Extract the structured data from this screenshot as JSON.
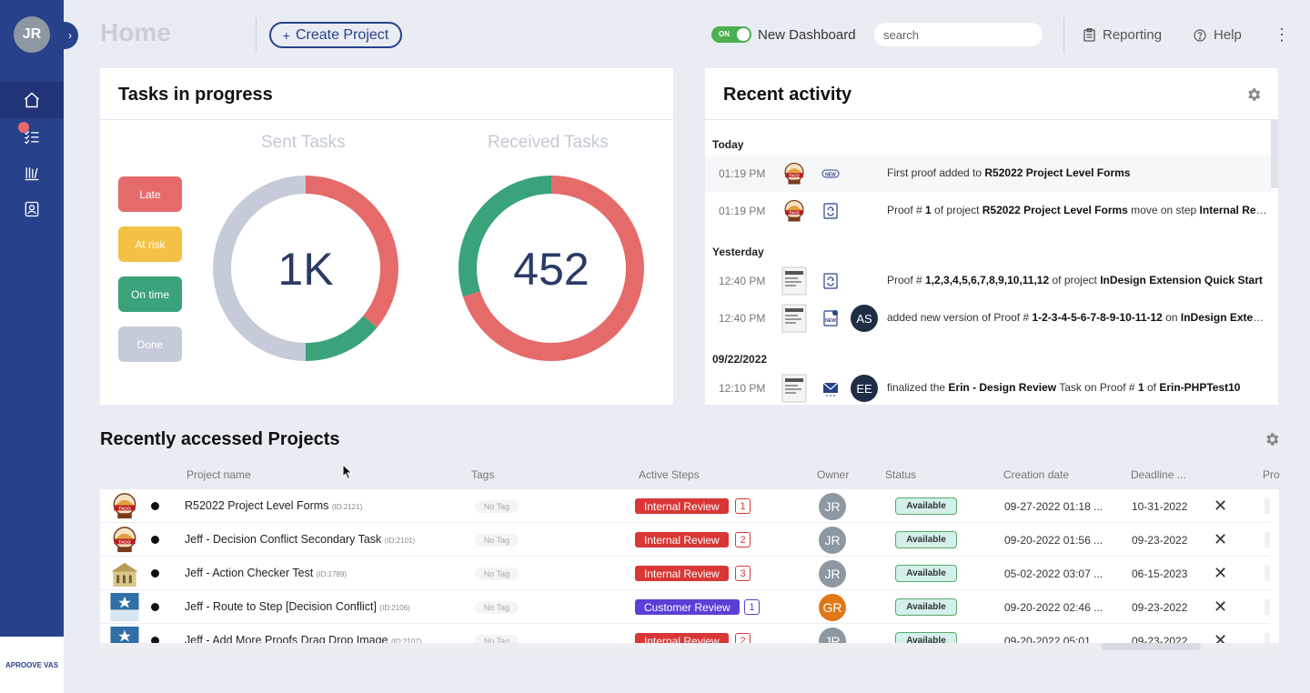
{
  "user": {
    "initials": "JR"
  },
  "sidebar": {
    "items": [
      {
        "name": "home",
        "icon": "home-icon"
      },
      {
        "name": "tasks",
        "icon": "task-list-icon"
      },
      {
        "name": "library",
        "icon": "library-icon"
      },
      {
        "name": "contacts",
        "icon": "contacts-icon"
      }
    ],
    "brand": "APROOVE VAS"
  },
  "header": {
    "title": "Home",
    "create_label": "Create Project",
    "toggle_state": "ON",
    "toggle_label": "New Dashboard",
    "search_placeholder": "search",
    "reporting_label": "Reporting",
    "help_label": "Help"
  },
  "tasks": {
    "title": "Tasks in progress",
    "legend": [
      {
        "label": "Late",
        "color": "#e56b6b"
      },
      {
        "label": "At risk",
        "color": "#f3c245"
      },
      {
        "label": "On time",
        "color": "#3aa37a"
      },
      {
        "label": "Done",
        "color": "#c5cbd8"
      }
    ],
    "sent": {
      "title": "Sent Tasks",
      "center": "1K"
    },
    "received": {
      "title": "Received Tasks",
      "center": "452"
    }
  },
  "chart_data": [
    {
      "type": "pie",
      "title": "Sent Tasks",
      "center_label": "1K",
      "categories": [
        "Late",
        "On time",
        "Done"
      ],
      "values": [
        36,
        14,
        50
      ]
    },
    {
      "type": "pie",
      "title": "Received Tasks",
      "center_label": "452",
      "categories": [
        "Late",
        "On time"
      ],
      "values": [
        70,
        30
      ]
    }
  ],
  "activity": {
    "title": "Recent activity",
    "groups": [
      {
        "label": "Today",
        "rows": [
          {
            "time": "01:19 PM",
            "parts": [
              [
                "First proof added to ",
                false
              ],
              [
                "R52022 Project Level Forms",
                true
              ]
            ],
            "icon": "new-badge-icon"
          },
          {
            "time": "01:19 PM",
            "parts": [
              [
                "Proof # ",
                false
              ],
              [
                "1",
                true
              ],
              [
                " of project ",
                false
              ],
              [
                "R52022 Project Level Forms",
                true
              ],
              [
                " move on step ",
                false
              ],
              [
                "Internal Review",
                true
              ]
            ],
            "icon": "document-sync-icon"
          }
        ]
      },
      {
        "label": "Yesterday",
        "rows": [
          {
            "time": "12:40 PM",
            "parts": [
              [
                "Proof # ",
                false
              ],
              [
                "1,2,3,4,5,6,7,8,9,10,11,12",
                true
              ],
              [
                " of project ",
                false
              ],
              [
                "InDesign Extension Quick Start",
                true
              ]
            ],
            "icon": "document-sync-icon"
          },
          {
            "time": "12:40 PM",
            "avatar": "AS",
            "parts": [
              [
                "added new version of Proof # ",
                false
              ],
              [
                "1-2-3-4-5-6-7-8-9-10-11-12",
                true
              ],
              [
                " on ",
                false
              ],
              [
                "InDesign Extension",
                true
              ]
            ],
            "icon": "new-document-icon"
          }
        ]
      },
      {
        "label": "09/22/2022",
        "rows": [
          {
            "time": "12:10 PM",
            "avatar": "EE",
            "parts": [
              [
                "finalized the ",
                false
              ],
              [
                "Erin - Design Review",
                true
              ],
              [
                " Task on Proof # ",
                false
              ],
              [
                "1",
                true
              ],
              [
                " of ",
                false
              ],
              [
                "Erin-PHPTest10",
                true
              ]
            ],
            "icon": "mail-icon"
          }
        ]
      }
    ]
  },
  "projects": {
    "title": "Recently accessed Projects",
    "columns": [
      "Project name",
      "Tags",
      "Active Steps",
      "Owner",
      "Status",
      "Creation date",
      "Deadline ...",
      "Pro"
    ],
    "rows": [
      {
        "name": "R52022 Project Level Forms",
        "id": "(ID:2121)",
        "tag": "No Tag",
        "step": "Internal Review",
        "step_color": "#d93636",
        "step_num": "1",
        "owner": "JR",
        "owner_color": "#8e98a3",
        "status": "Available",
        "created": "09-27-2022 01:18 ...",
        "deadline": "10-31-2022",
        "thumb": "taco"
      },
      {
        "name": "Jeff - Decision Conflict Secondary Task",
        "id": "(ID:2101)",
        "tag": "No Tag",
        "step": "Internal Review",
        "step_color": "#d93636",
        "step_num": "2",
        "owner": "JR",
        "owner_color": "#8e98a3",
        "status": "Available",
        "created": "09-20-2022 01:56 ...",
        "deadline": "09-23-2022",
        "thumb": "taco"
      },
      {
        "name": "Jeff - Action Checker Test",
        "id": "(ID:1789)",
        "tag": "No Tag",
        "step": "Internal Review",
        "step_color": "#d93636",
        "step_num": "3",
        "owner": "JR",
        "owner_color": "#8e98a3",
        "status": "Available",
        "created": "05-02-2022 03:07 ...",
        "deadline": "06-15-2023",
        "thumb": "building"
      },
      {
        "name": "Jeff - Route to Step [Decision Conflict]",
        "id": "(ID:2106)",
        "tag": "No Tag",
        "step": "Customer Review",
        "step_color": "#5b3fd6",
        "step_num": "1",
        "owner": "GR",
        "owner_color": "#e07818",
        "status": "Available",
        "created": "09-20-2022 02:46 ...",
        "deadline": "09-23-2022",
        "thumb": "star"
      },
      {
        "name": "Jeff - Add More Proofs Drag Drop Image",
        "id": "(ID:2107)",
        "tag": "No Tag",
        "step": "Internal Review",
        "step_color": "#d93636",
        "step_num": "2",
        "owner": "JR",
        "owner_color": "#8e98a3",
        "status": "Available",
        "created": "09-20-2022 05:01 ...",
        "deadline": "09-23-2022",
        "thumb": "star"
      }
    ]
  }
}
